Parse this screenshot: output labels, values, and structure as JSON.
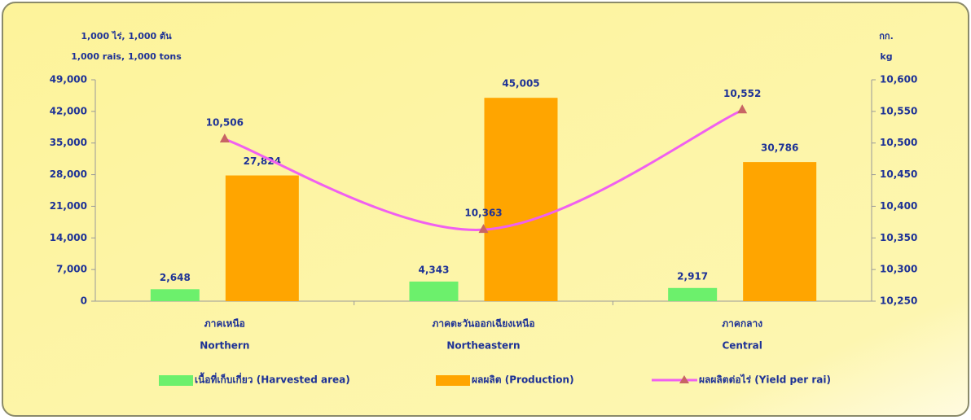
{
  "chart_data": {
    "type": "bar",
    "y_label": [
      "1,000 ไร่,  1,000 ตัน",
      "1,000 rais,  1,000 tons"
    ],
    "y2_label": [
      "กก.",
      "kg"
    ],
    "categories": [
      [
        "ภาคเหนือ",
        "Northern"
      ],
      [
        "ภาคตะวันออกเฉียงเหนือ",
        "Northeastern"
      ],
      [
        "ภาคกลาง",
        "Central"
      ]
    ],
    "series": [
      {
        "name": "เนื้อที่เก็บเกี่ยว (Harvested area)",
        "type": "bar",
        "color": "#6cf06c",
        "values": [
          2648,
          4343,
          2917
        ],
        "value_labels": [
          "2,648",
          "4,343",
          "2,917"
        ]
      },
      {
        "name": "ผลผลิต  (Production)",
        "type": "bar",
        "color": "#ffa500",
        "values": [
          27824,
          45005,
          30786
        ],
        "value_labels": [
          "27,824",
          "45,005",
          "30,786"
        ]
      },
      {
        "name": "ผลผลิตต่อไร่ (Yield per rai)",
        "type": "line",
        "axis": "y2",
        "color": "#f060f0",
        "marker_color": "#c86464",
        "values": [
          10506,
          10363,
          10552
        ],
        "value_labels": [
          "10,506",
          "10,363",
          "10,552"
        ]
      }
    ],
    "ylim": [
      0,
      49000
    ],
    "yticks": [
      0,
      {
        "value": 7000,
        "label": "7,000"
      },
      {
        "value": 14000,
        "label": "14,000"
      },
      {
        "value": 21000,
        "label": "21,000"
      },
      {
        "value": 28000,
        "label": "28,000"
      },
      {
        "value": 35000,
        "label": "35,000"
      },
      {
        "value": 42000,
        "label": "42,000"
      },
      {
        "value": 49000,
        "label": "49,000"
      }
    ],
    "y2lim": [
      10250,
      10600
    ],
    "y2ticks": [
      {
        "value": 10250,
        "label": "10,250"
      },
      {
        "value": 10300,
        "label": "10,300"
      },
      {
        "value": 10350,
        "label": "10,350"
      },
      {
        "value": 10400,
        "label": "10,400"
      },
      {
        "value": 10450,
        "label": "10,450"
      },
      {
        "value": 10500,
        "label": "10,500"
      },
      {
        "value": 10550,
        "label": "10,550"
      },
      {
        "value": 10600,
        "label": "10,600"
      }
    ],
    "grid": false,
    "legend": "bottom"
  }
}
